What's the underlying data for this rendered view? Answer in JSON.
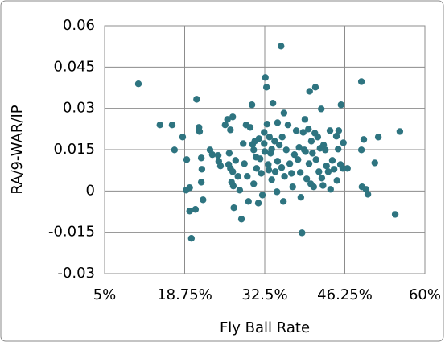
{
  "chart_data": {
    "type": "scatter",
    "xlabel": "Fly Ball Rate",
    "ylabel": "RA/9-WAR/IP",
    "color": "#2e7480",
    "grid": true,
    "xlim": [
      5,
      60
    ],
    "xticks": [
      {
        "value": 5,
        "label": "5%"
      },
      {
        "value": 18.75,
        "label": "18.75%"
      },
      {
        "value": 32.5,
        "label": "32.5%"
      },
      {
        "value": 46.25,
        "label": "46.25%"
      },
      {
        "value": 60,
        "label": "60%"
      }
    ],
    "ylim": [
      -0.03,
      0.06
    ],
    "yticks": [
      -0.03,
      -0.015,
      0,
      0.015,
      0.03,
      0.045,
      0.06
    ],
    "x": [
      10.8,
      14.5,
      16.6,
      17.0,
      18.4,
      19.1,
      19.0,
      19.6,
      19.6,
      19.9,
      20.6,
      20.8,
      21.2,
      21.3,
      21.6,
      21.7,
      21.6,
      21.9,
      23.1,
      23.5,
      24.5,
      24.6,
      24.9,
      25.7,
      26.1,
      26.6,
      26.4,
      26.3,
      26.6,
      27.0,
      26.8,
      27.1,
      27.2,
      27.0,
      27.5,
      27.9,
      28.2,
      28.5,
      28.8,
      29.0,
      29.3,
      29.5,
      29.7,
      30.0,
      30.3,
      30.4,
      30.6,
      30.6,
      30.8,
      31.0,
      31.1,
      31.4,
      31.5,
      31.7,
      31.9,
      32.1,
      32.4,
      32.4,
      32.5,
      32.6,
      32.8,
      32.9,
      33.1,
      33.2,
      33.3,
      33.5,
      33.7,
      33.7,
      33.9,
      34.2,
      34.3,
      34.6,
      34.7,
      34.7,
      35.0,
      35.3,
      35.4,
      35.5,
      35.7,
      35.8,
      35.9,
      36.2,
      36.5,
      36.8,
      37.1,
      37.3,
      37.6,
      37.9,
      38.2,
      38.4,
      38.6,
      38.7,
      38.9,
      39.1,
      39.3,
      39.4,
      39.5,
      39.7,
      40.0,
      40.1,
      40.2,
      40.4,
      40.5,
      40.7,
      40.9,
      41.1,
      41.2,
      41.3,
      41.6,
      41.8,
      42.0,
      42.2,
      42.3,
      42.5,
      42.6,
      42.9,
      43.1,
      43.4,
      43.7,
      43.8,
      44.1,
      44.4,
      44.8,
      44.9,
      45.1,
      45.2,
      45.5,
      45.6,
      45.9,
      46.0,
      46.7,
      49.1,
      49.1,
      49.2,
      49.5,
      49.9,
      50.2,
      51.4,
      52.0,
      54.9,
      55.7
    ],
    "values": [
      0.0389,
      0.024,
      0.024,
      0.0149,
      0.0196,
      0.0114,
      0.0003,
      0.0012,
      -0.0073,
      -0.0172,
      -0.0067,
      0.0333,
      0.0231,
      0.0216,
      0.012,
      0.0079,
      0.0032,
      -0.0032,
      0.0149,
      0.0132,
      0.0129,
      0.0108,
      0.0091,
      0.024,
      0.026,
      0.0222,
      0.0137,
      0.0096,
      0.0082,
      0.007,
      0.0032,
      0.0018,
      -0.0061,
      0.0269,
      0.0111,
      0.0053,
      0.0003,
      -0.0102,
      0.0172,
      0.0099,
      0.024,
      0.0053,
      -0.0038,
      0.0231,
      0.0313,
      0.0169,
      0.0149,
      0.0026,
      0.0181,
      0.0123,
      0.0082,
      -0.0044,
      0.019,
      0.0117,
      0.0064,
      -0.0015,
      0.0213,
      0.0172,
      0.0143,
      0.0412,
      0.0377,
      0.0243,
      0.0096,
      0.0076,
      0.0196,
      0.0137,
      0.0152,
      0.0041,
      0.0319,
      0.0181,
      0.007,
      -0.0003,
      0.0248,
      0.0108,
      0.0167,
      0.0526,
      0.0085,
      0.0196,
      -0.0038,
      0.0283,
      0.0053,
      0.0149,
      0.024,
      0.0099,
      0.0064,
      0.0015,
      0.0132,
      0.0219,
      0.0114,
      0.0158,
      0.0067,
      -0.0023,
      -0.0152,
      0.0213,
      0.0149,
      0.026,
      0.0143,
      0.0044,
      0.0225,
      0.0099,
      0.0362,
      0.0026,
      0.0181,
      0.0137,
      0.0015,
      0.021,
      0.0377,
      0.0114,
      0.0196,
      0.007,
      0.0155,
      0.0298,
      0.0047,
      0.002,
      0.0167,
      0.0149,
      0.0091,
      0.007,
      0.0219,
      0.0006,
      0.0111,
      0.0079,
      0.0199,
      0.0038,
      0.0152,
      0.0219,
      0.0096,
      0.0313,
      0.0082,
      0.0175,
      0.0082,
      0.0397,
      0.0149,
      0.0015,
      0.0187,
      0.0006,
      -0.0012,
      0.0102,
      0.0196,
      -0.0085,
      0.0216
    ]
  }
}
